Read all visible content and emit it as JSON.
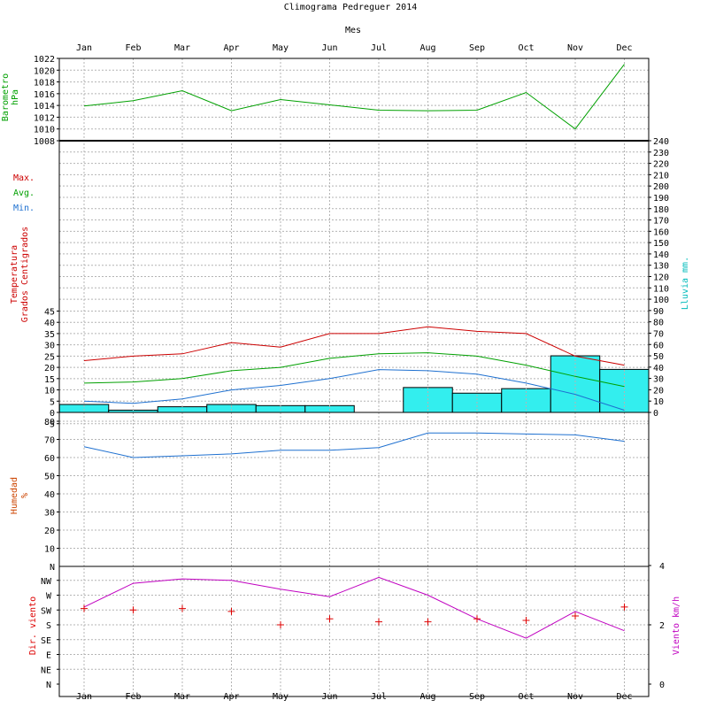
{
  "chart_data": {
    "type": "line",
    "title": "Climograma Pedreguer 2014",
    "xlabel": "Mes",
    "months": [
      "Jan",
      "Feb",
      "Mar",
      "Apr",
      "May",
      "Jun",
      "Jul",
      "Aug",
      "Sep",
      "Oct",
      "Nov",
      "Dec"
    ],
    "grid": true,
    "panels": {
      "barometer": {
        "ylabel": [
          "Barometro",
          "hPa"
        ],
        "ylim": [
          1008,
          1022
        ],
        "ticks": [
          1008,
          1010,
          1012,
          1014,
          1016,
          1018,
          1020,
          1022
        ],
        "series": [
          {
            "name": "",
            "color": "#00a000",
            "values": [
              1013.9,
              1014.8,
              1016.5,
              1013.1,
              1015.0,
              1014.1,
              1013.2,
              1013.1,
              1013.2,
              1016.2,
              1010.0,
              1021.0
            ]
          }
        ]
      },
      "temperature": {
        "ylabel": [
          "Temperatura",
          "Grados Centigrados"
        ],
        "ylim": [
          -5,
          45
        ],
        "ticks": [
          -5,
          0,
          5,
          10,
          15,
          20,
          25,
          30,
          35,
          40,
          45
        ],
        "legend": [
          {
            "label": "Max.",
            "color": "#cc0000"
          },
          {
            "label": "Avg.",
            "color": "#00a000"
          },
          {
            "label": "Min.",
            "color": "#1e70d0"
          }
        ],
        "series": [
          {
            "name": "Max.",
            "color": "#cc0000",
            "values": [
              23,
              25,
              26,
              31,
              29,
              35,
              35,
              38,
              36,
              35,
              25,
              21
            ]
          },
          {
            "name": "Avg.",
            "color": "#00a000",
            "values": [
              13,
              13.5,
              15,
              18.5,
              20,
              24,
              26,
              26.5,
              25,
              21,
              16,
              11.5
            ]
          },
          {
            "name": "Min.",
            "color": "#1e70d0",
            "values": [
              5,
              4,
              6,
              10,
              12,
              15,
              19,
              18.5,
              17,
              13,
              8,
              1
            ]
          }
        ]
      },
      "rain": {
        "ylabel": "Lluvia mm.",
        "type": "bar",
        "color": "#33eeee",
        "ylim": [
          0,
          240
        ],
        "ticks": [
          0,
          10,
          20,
          30,
          40,
          50,
          60,
          70,
          80,
          90,
          100,
          110,
          120,
          130,
          140,
          150,
          160,
          170,
          180,
          190,
          200,
          210,
          220,
          230,
          240
        ],
        "values": [
          7,
          2,
          5,
          7,
          6,
          6,
          0,
          22,
          17,
          21,
          50,
          38
        ]
      },
      "humidity": {
        "ylabel": [
          "Humedad",
          "%"
        ],
        "ylim": [
          0,
          80
        ],
        "ticks": [
          10,
          20,
          30,
          40,
          50,
          60,
          70,
          80
        ],
        "zero_label": "N",
        "series": [
          {
            "name": "",
            "color": "#1e70d0",
            "values": [
              66,
              60,
              61,
              62,
              64,
              64,
              65.5,
              73.5,
              73.5,
              73,
              72.5,
              69
            ]
          }
        ]
      },
      "wind": {
        "ylabel_left": "Dir. viento",
        "ylabel_right": "Viento km/h",
        "direction_labels": [
          "N",
          "NE",
          "E",
          "SE",
          "S",
          "SW",
          "W",
          "NW"
        ],
        "direction_values": [
          5.1,
          5.0,
          5.1,
          4.9,
          4.0,
          4.4,
          4.2,
          4.2,
          4.4,
          4.3,
          4.6,
          5.2
        ],
        "speed_ylim": [
          0,
          4
        ],
        "speed_ticks": [
          0,
          2,
          4
        ],
        "speed_values": [
          2.6,
          3.4,
          3.55,
          3.5,
          3.2,
          2.95,
          3.6,
          3.0,
          2.2,
          1.55,
          2.45,
          1.8
        ],
        "direction_color": "#dd0000",
        "speed_color": "#c000c0"
      }
    }
  }
}
